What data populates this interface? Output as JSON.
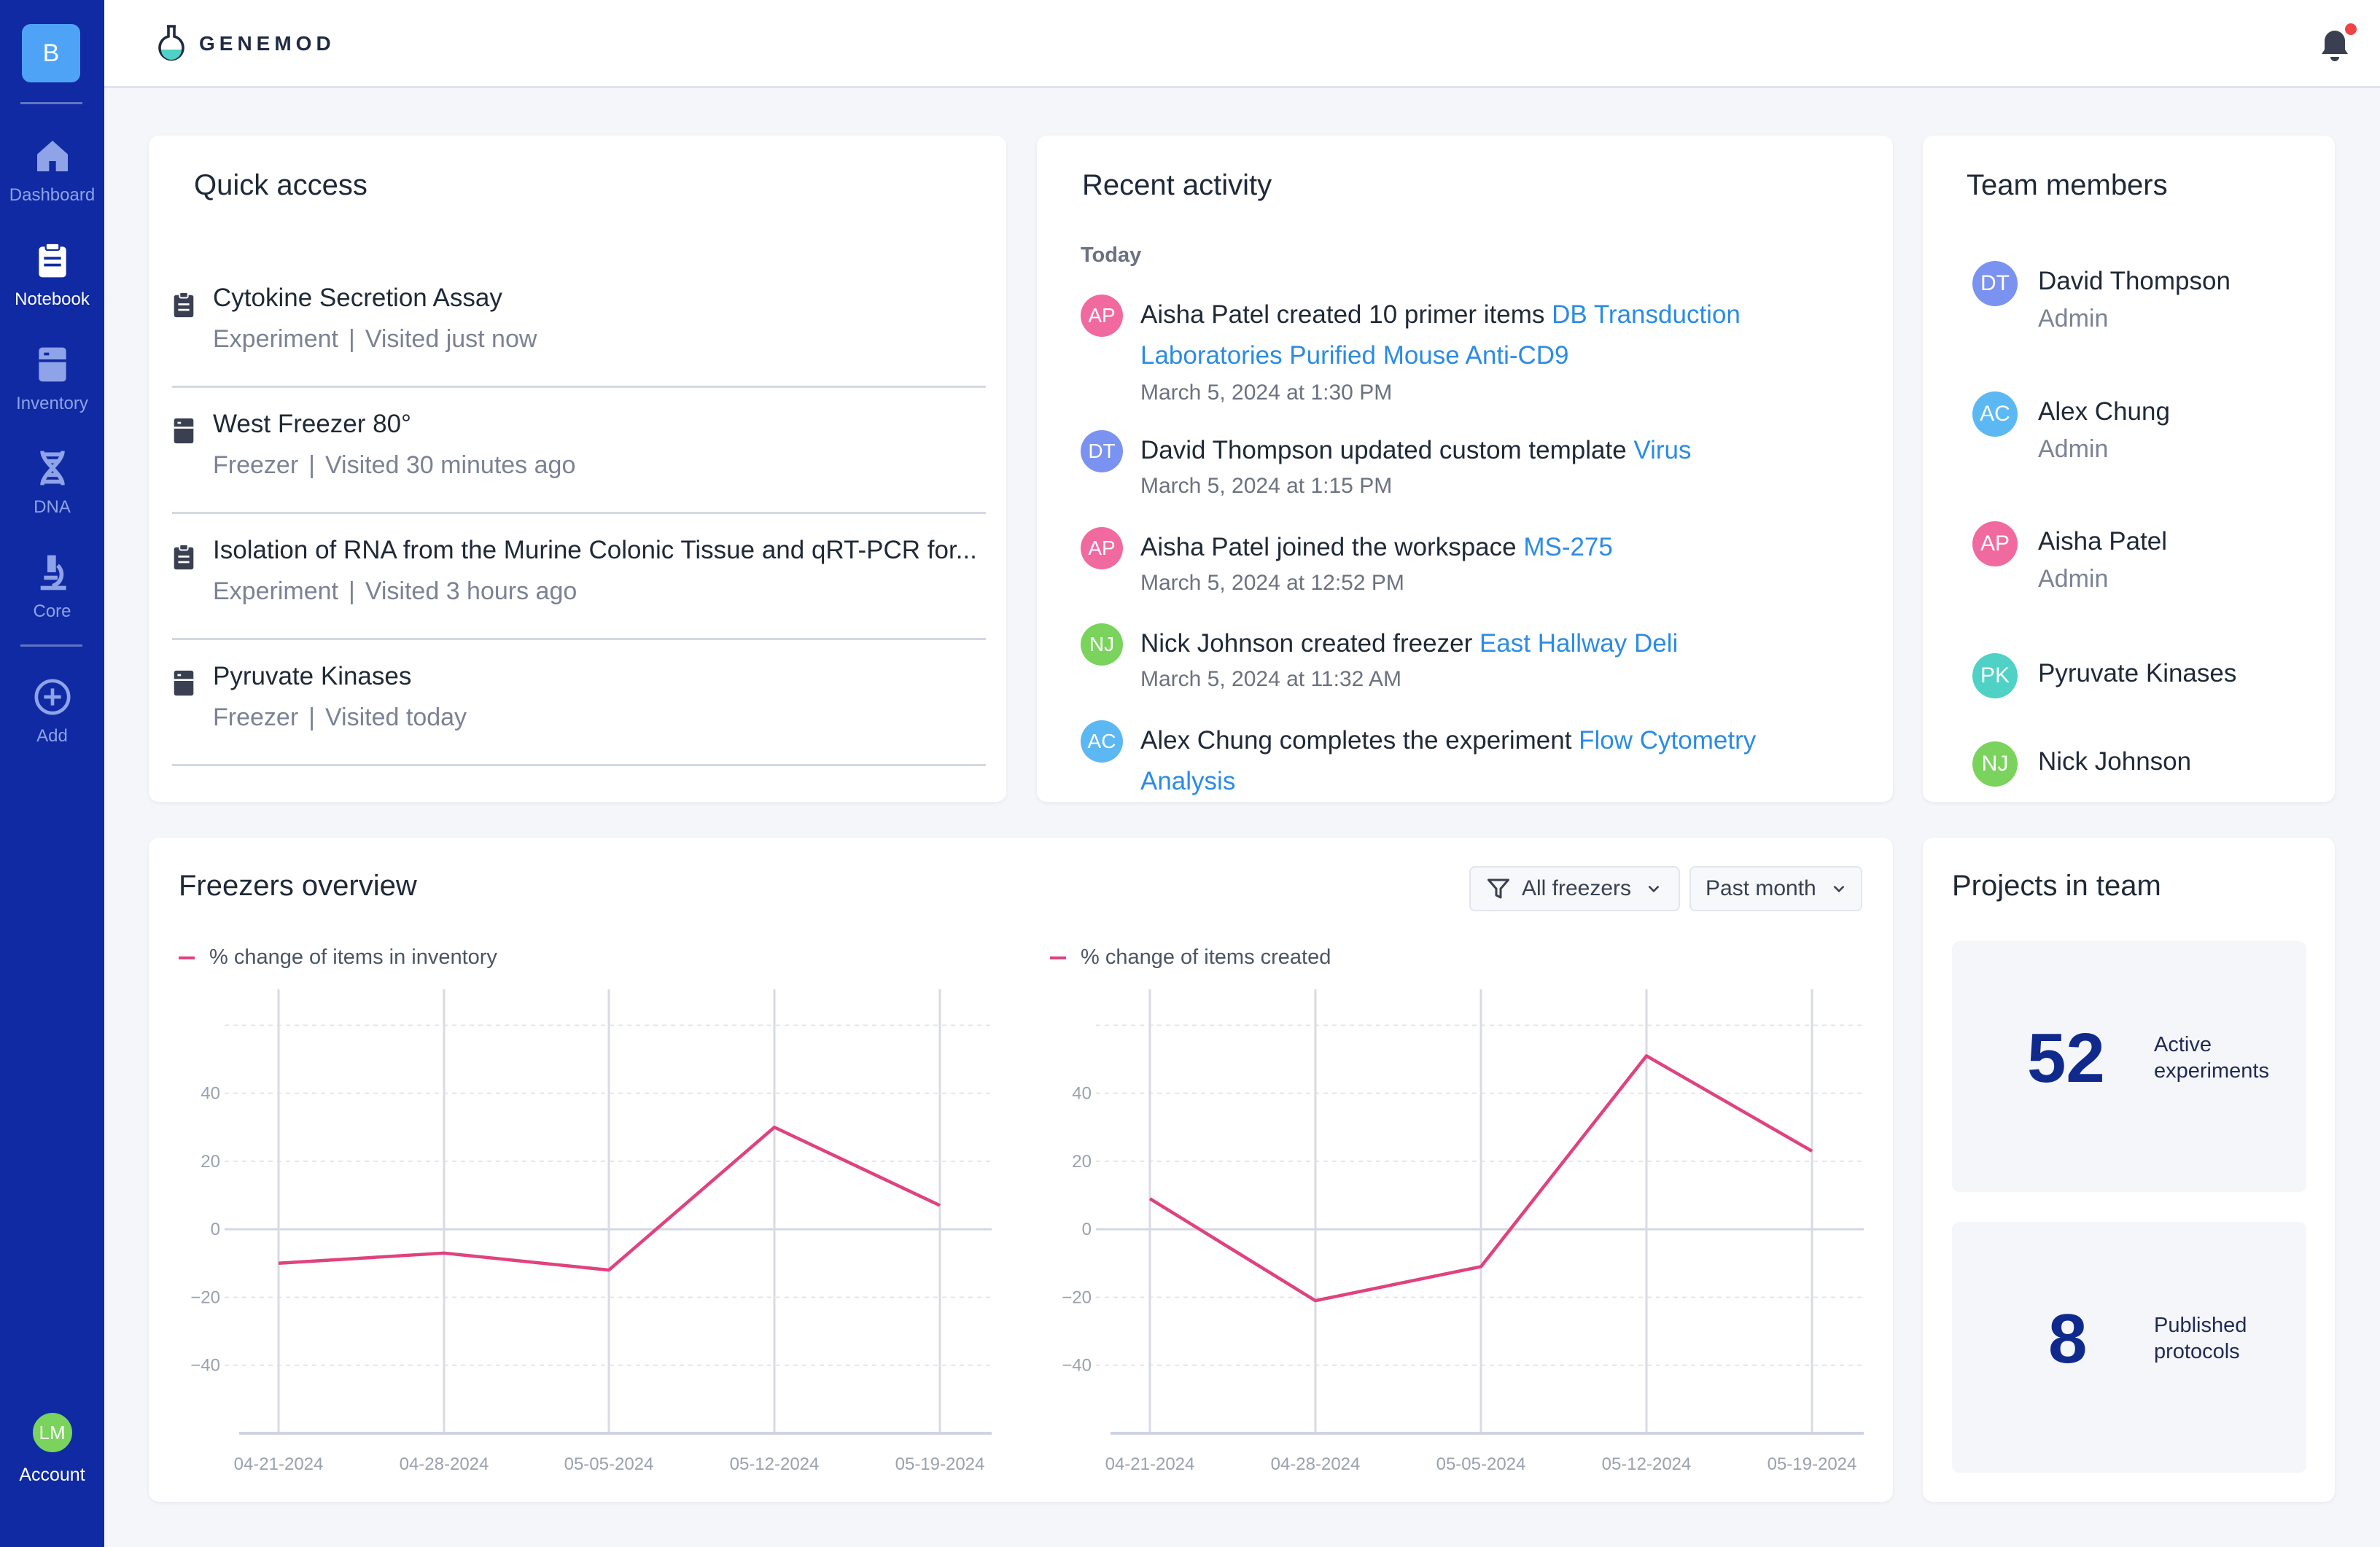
{
  "sidebar": {
    "workspace_initial": "B",
    "items": [
      {
        "label": "Dashboard",
        "icon": "home-icon"
      },
      {
        "label": "Notebook",
        "icon": "notebook-icon"
      },
      {
        "label": "Inventory",
        "icon": "inventory-icon"
      },
      {
        "label": "DNA",
        "icon": "dna-icon"
      },
      {
        "label": "Core",
        "icon": "microscope-icon"
      },
      {
        "label": "Add",
        "icon": "add-circle-icon"
      }
    ],
    "account": {
      "initials": "LM",
      "label": "Account"
    }
  },
  "topbar": {
    "brand": "GENEMOD"
  },
  "quick_access": {
    "title": "Quick access",
    "items": [
      {
        "title": "Cytokine Secretion Assay",
        "type": "Experiment",
        "visited": "Visited just now",
        "icon": "clipboard-icon"
      },
      {
        "title": "West Freezer 80°",
        "type": "Freezer",
        "visited": "Visited 30 minutes ago",
        "icon": "freezer-icon"
      },
      {
        "title": "Isolation of RNA from the Murine Colonic Tissue and qRT-PCR for...",
        "type": "Experiment",
        "visited": "Visited 3 hours ago",
        "icon": "clipboard-icon"
      },
      {
        "title": "Pyruvate Kinases",
        "type": "Freezer",
        "visited": "Visited today",
        "icon": "freezer-icon"
      }
    ]
  },
  "recent_activity": {
    "title": "Recent activity",
    "group": "Today",
    "items": [
      {
        "initials": "AP",
        "color": "#f06aa0",
        "text": "Aisha Patel created 10 primer items ",
        "link": "DB Transduction Laboratories Purified Mouse Anti-CD9",
        "date": "March 5, 2024 at 1:30 PM"
      },
      {
        "initials": "DT",
        "color": "#7b93f0",
        "text": "David Thompson updated custom template ",
        "link": "Virus",
        "date": "March 5, 2024 at 1:15 PM"
      },
      {
        "initials": "AP",
        "color": "#f06aa0",
        "text": "Aisha Patel joined the workspace ",
        "link": "MS-275",
        "date": "March 5, 2024 at 12:52 PM"
      },
      {
        "initials": "NJ",
        "color": "#7ad35c",
        "text": "Nick Johnson created freezer ",
        "link": "East Hallway Deli",
        "date": "March 5, 2024 at 11:32 AM"
      },
      {
        "initials": "AC",
        "color": "#5cb8f2",
        "text": "Alex Chung completes the experiment ",
        "link": "Flow Cytometry Analysis",
        "date": ""
      }
    ]
  },
  "team": {
    "title": "Team members",
    "members": [
      {
        "initials": "DT",
        "name": "David Thompson",
        "role": "Admin",
        "color": "#7b93f0"
      },
      {
        "initials": "AC",
        "name": "Alex Chung",
        "role": "Admin",
        "color": "#5cb8f2"
      },
      {
        "initials": "AP",
        "name": "Aisha Patel",
        "role": "Admin",
        "color": "#f06aa0"
      },
      {
        "initials": "PK",
        "name": "Pyruvate Kinases",
        "role": "",
        "color": "#4fd1c5"
      },
      {
        "initials": "NJ",
        "name": "Nick Johnson",
        "role": "",
        "color": "#7ad35c"
      }
    ]
  },
  "freezers": {
    "title": "Freezers overview",
    "filter_freezers": "All freezers",
    "filter_period": "Past month",
    "accent": "#e0427f"
  },
  "chart_data": [
    {
      "type": "line",
      "series": [
        {
          "name": "% change of items in inventory",
          "values": [
            -10,
            -7,
            -12,
            30,
            7
          ]
        }
      ],
      "x": [
        "04-21-2024",
        "04-28-2024",
        "05-05-2024",
        "05-12-2024",
        "05-19-2024"
      ],
      "yticks": [
        40,
        20,
        0,
        -20,
        -40
      ],
      "ylim": [
        -60,
        62
      ]
    },
    {
      "type": "line",
      "series": [
        {
          "name": "% change of items created",
          "values": [
            9,
            -21,
            -11,
            51,
            23
          ]
        }
      ],
      "x": [
        "04-21-2024",
        "04-28-2024",
        "05-05-2024",
        "05-12-2024",
        "05-19-2024"
      ],
      "yticks": [
        40,
        20,
        0,
        -20,
        -40
      ],
      "ylim": [
        -60,
        62
      ]
    }
  ],
  "projects": {
    "title": "Projects in team",
    "stats": [
      {
        "value": "52",
        "label": "Active experiments"
      },
      {
        "value": "8",
        "label": "Published protocols"
      }
    ]
  }
}
